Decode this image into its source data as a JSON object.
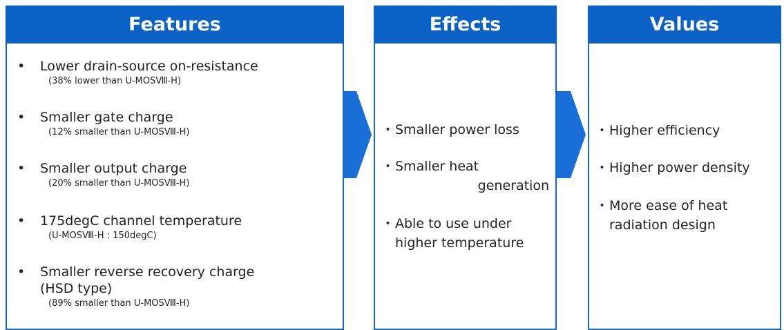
{
  "columns": [
    {
      "title": "Features",
      "items": [
        {
          "lines": [
            "Lower drain-source on-resistance"
          ],
          "note": "(38% lower than U-MOSⅧ-H)"
        },
        {
          "lines": [
            "Smaller gate charge"
          ],
          "note": "(12% smaller than U-MOSⅧ-H)"
        },
        {
          "lines": [
            "Smaller output charge"
          ],
          "note": "(20% smaller than U-MOSⅧ-H)"
        },
        {
          "lines": [
            "175degC channel temperature"
          ],
          "note": "(U-MOSⅧ-H : 150degC)"
        },
        {
          "lines": [
            "Smaller reverse recovery charge",
            "(HSD type)"
          ],
          "note": "(89% smaller than U-MOSⅧ-H)"
        }
      ]
    },
    {
      "title": "Effects",
      "items": [
        {
          "lines": [
            "Smaller power loss"
          ]
        },
        {
          "lines": [
            "Smaller heat",
            "generation"
          ]
        },
        {
          "lines": [
            "Able to use under",
            "higher temperature"
          ]
        }
      ]
    },
    {
      "title": "Values",
      "items": [
        {
          "lines": [
            "Higher efficiency"
          ]
        },
        {
          "lines": [
            "Higher power density"
          ]
        },
        {
          "lines": [
            "More ease of heat",
            "radiation design"
          ]
        }
      ]
    }
  ]
}
